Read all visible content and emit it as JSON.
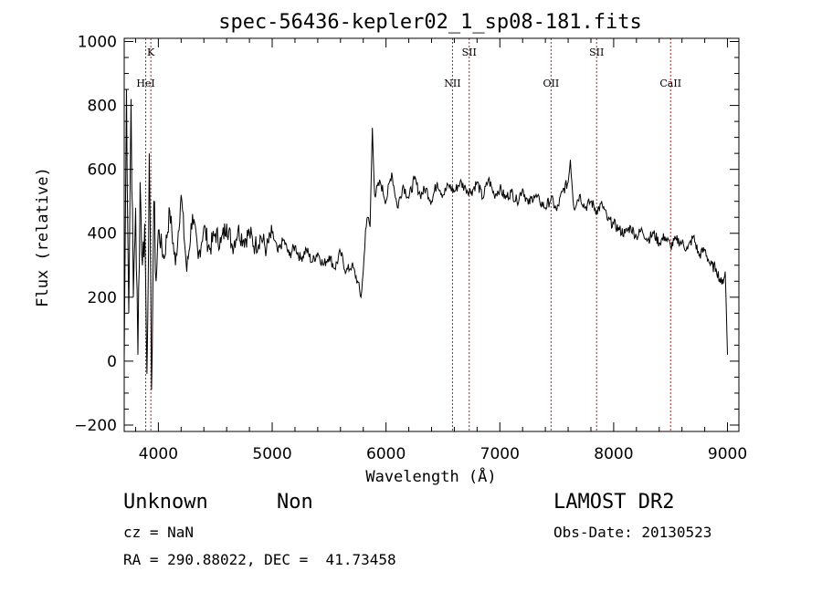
{
  "chart_data": {
    "type": "line",
    "title": "spec-56436-kepler02_1_sp08-181.fits",
    "xlabel": "Wavelength (Å)",
    "ylabel": "Flux (relative)",
    "xlim": [
      3700,
      9100
    ],
    "ylim": [
      -220,
      1010
    ],
    "x_ticks": [
      4000,
      5000,
      6000,
      7000,
      8000,
      9000
    ],
    "y_ticks": [
      -200,
      0,
      200,
      400,
      600,
      800,
      1000
    ],
    "x_tick_labels": [
      "4000",
      "5000",
      "6000",
      "7000",
      "8000",
      "9000"
    ],
    "y_tick_labels": [
      "−200",
      "0",
      "200",
      "400",
      "600",
      "800",
      "1000"
    ],
    "line_color": "#000000",
    "marker_color": "#b22222",
    "spectral_lines": [
      {
        "label": "K",
        "wavelength": 3934,
        "label_row": "upper"
      },
      {
        "label": "HeI",
        "wavelength": 3889,
        "label_row": "lower"
      },
      {
        "label": "NII",
        "wavelength": 6584,
        "label_row": "lower"
      },
      {
        "label": "SII",
        "wavelength": 6731,
        "label_row": "upper"
      },
      {
        "label": "OII",
        "wavelength": 7450,
        "label_row": "lower"
      },
      {
        "label": "SII",
        "wavelength": 7850,
        "label_row": "upper"
      },
      {
        "label": "CaII",
        "wavelength": 8500,
        "label_row": "lower"
      }
    ],
    "series": [
      {
        "x": [
          3700,
          3720,
          3740,
          3760,
          3780,
          3800,
          3820,
          3840,
          3860,
          3880,
          3900,
          3920,
          3940,
          3960,
          3980,
          4000,
          4050,
          4100,
          4150,
          4200,
          4250,
          4300,
          4350,
          4400,
          4450,
          4500,
          4550,
          4600,
          4650,
          4700,
          4750,
          4800,
          4850,
          4900,
          4950,
          5000,
          5050,
          5100,
          5150,
          5200,
          5250,
          5300,
          5350,
          5400,
          5450,
          5500,
          5550,
          5600,
          5650,
          5700,
          5750,
          5780,
          5800,
          5820,
          5840,
          5860,
          5880,
          5900,
          5950,
          6000,
          6050,
          6100,
          6150,
          6200,
          6250,
          6300,
          6350,
          6400,
          6450,
          6500,
          6550,
          6600,
          6650,
          6700,
          6750,
          6800,
          6850,
          6900,
          6950,
          7000,
          7050,
          7100,
          7150,
          7200,
          7250,
          7300,
          7350,
          7400,
          7450,
          7500,
          7550,
          7600,
          7620,
          7650,
          7700,
          7750,
          7800,
          7850,
          7900,
          7950,
          8000,
          8050,
          8100,
          8150,
          8200,
          8250,
          8300,
          8350,
          8400,
          8450,
          8500,
          8550,
          8600,
          8650,
          8700,
          8750,
          8800,
          8850,
          8900,
          8950,
          8980,
          9000
        ],
        "y": [
          0,
          850,
          150,
          820,
          200,
          480,
          20,
          560,
          300,
          430,
          -40,
          650,
          -90,
          500,
          250,
          410,
          320,
          470,
          300,
          520,
          280,
          460,
          320,
          420,
          350,
          400,
          370,
          430,
          360,
          410,
          380,
          400,
          360,
          390,
          350,
          400,
          340,
          380,
          330,
          360,
          320,
          350,
          310,
          340,
          300,
          330,
          290,
          340,
          280,
          300,
          250,
          200,
          280,
          410,
          450,
          420,
          730,
          520,
          560,
          500,
          590,
          480,
          550,
          510,
          570,
          520,
          540,
          500,
          560,
          520,
          550,
          530,
          560,
          540,
          530,
          560,
          510,
          570,
          520,
          540,
          510,
          530,
          500,
          540,
          490,
          520,
          500,
          480,
          510,
          470,
          530,
          560,
          630,
          480,
          520,
          480,
          500,
          470,
          490,
          440,
          430,
          410,
          400,
          420,
          390,
          410,
          380,
          400,
          370,
          390,
          360,
          380,
          370,
          350,
          390,
          330,
          350,
          300,
          290,
          240,
          280,
          20
        ]
      }
    ]
  },
  "info": {
    "object_class": "Unknown",
    "subclass": "Non",
    "survey": "LAMOST DR2",
    "cz": "cz = NaN",
    "obs_date": "Obs-Date: 20130523",
    "coords": "RA = 290.88022, DEC =  41.73458"
  }
}
